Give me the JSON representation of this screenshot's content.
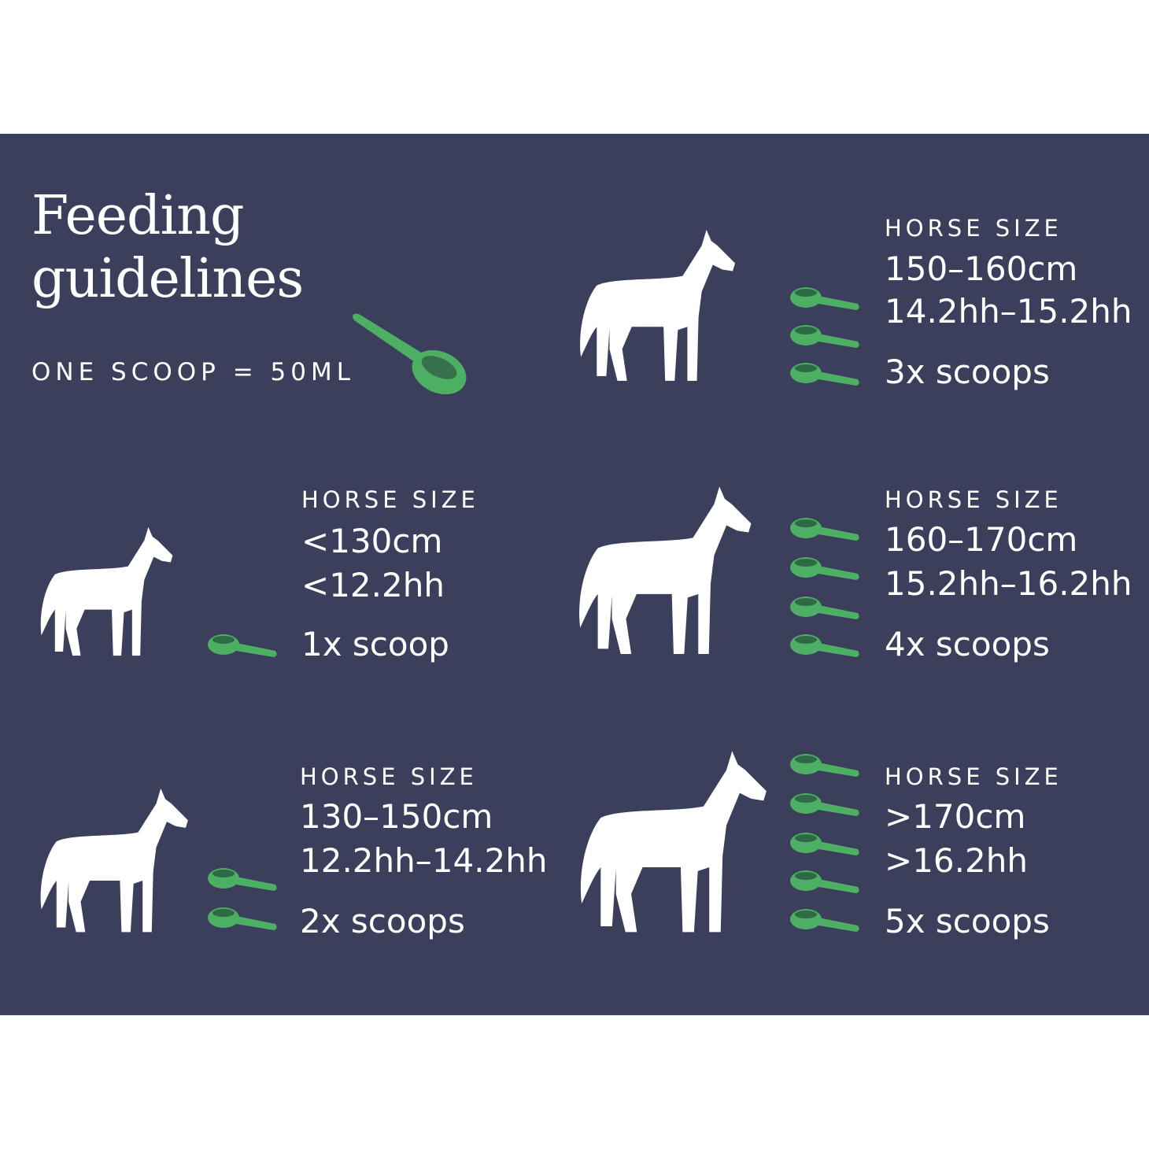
{
  "title_line1": "Feeding",
  "title_line2": "guidelines",
  "subtitle": "ONE SCOOP = 50ML",
  "colors": {
    "background": "#3b3f5b",
    "scoop": "#4caf64",
    "text": "#ffffff"
  },
  "entries": [
    {
      "label": "HORSE SIZE",
      "cm": "<130cm",
      "hh": "<12.2hh",
      "scoops": 1,
      "quantity": "1x scoop"
    },
    {
      "label": "HORSE SIZE",
      "cm": "130–150cm",
      "hh": "12.2hh–14.2hh",
      "scoops": 2,
      "quantity": "2x scoops"
    },
    {
      "label": "HORSE SIZE",
      "cm": "150–160cm",
      "hh": "14.2hh–15.2hh",
      "scoops": 3,
      "quantity": "3x scoops"
    },
    {
      "label": "HORSE SIZE",
      "cm": "160–170cm",
      "hh": "15.2hh–16.2hh",
      "scoops": 4,
      "quantity": "4x scoops"
    },
    {
      "label": "HORSE SIZE",
      "cm": ">170cm",
      "hh": ">16.2hh",
      "scoops": 5,
      "quantity": "5x scoops"
    }
  ]
}
